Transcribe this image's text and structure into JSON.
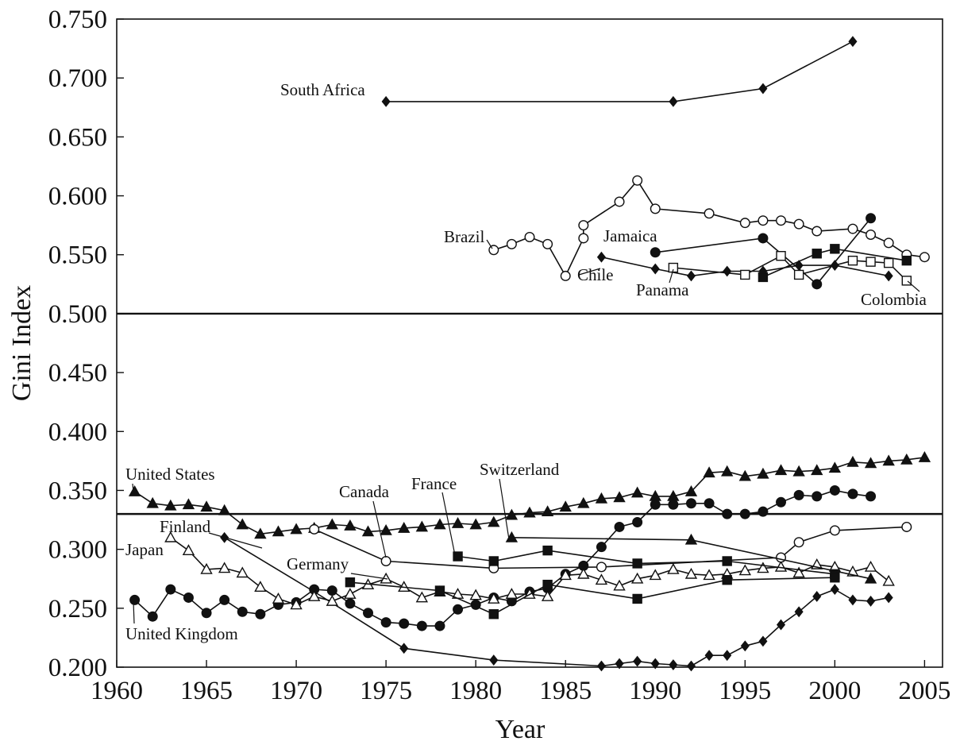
{
  "chart_data": {
    "type": "line",
    "title": "",
    "xlabel": "Year",
    "ylabel": "Gini Index",
    "xlim": [
      1960,
      2006
    ],
    "ylim": [
      0.2,
      0.75
    ],
    "x_ticks": [
      "1960",
      "1965",
      "1970",
      "1975",
      "1980",
      "1985",
      "1990",
      "1995",
      "2000",
      "2005"
    ],
    "y_ticks": [
      "0.200",
      "0.250",
      "0.300",
      "0.350",
      "0.400",
      "0.450",
      "0.500",
      "0.550",
      "0.600",
      "0.650",
      "0.700",
      "0.750"
    ],
    "reference_lines": [
      0.5,
      0.33
    ],
    "grid": false,
    "legend": "none (series labelled directly on the plot)",
    "series": [
      {
        "name": "South Africa",
        "marker": "filled-diamond",
        "points": [
          [
            1975,
            0.68
          ],
          [
            1991,
            0.68
          ],
          [
            1996,
            0.691
          ],
          [
            2001,
            0.731
          ]
        ]
      },
      {
        "name": "Brazil",
        "marker": "open-circle",
        "points": [
          [
            1981,
            0.554
          ],
          [
            1982,
            0.559
          ],
          [
            1983,
            0.565
          ],
          [
            1984,
            0.559
          ],
          [
            1985,
            0.532
          ],
          [
            1986,
            0.564
          ],
          [
            1986,
            0.575
          ],
          [
            1988,
            0.595
          ],
          [
            1989,
            0.613
          ],
          [
            1990,
            0.589
          ],
          [
            1993,
            0.585
          ],
          [
            1995,
            0.577
          ],
          [
            1996,
            0.579
          ],
          [
            1997,
            0.579
          ],
          [
            1998,
            0.576
          ],
          [
            1999,
            0.57
          ],
          [
            2001,
            0.572
          ],
          [
            2002,
            0.567
          ],
          [
            2003,
            0.56
          ],
          [
            2004,
            0.55
          ],
          [
            2005,
            0.548
          ]
        ]
      },
      {
        "name": "Jamaica",
        "marker": "filled-circle",
        "points": [
          [
            1990,
            0.552
          ],
          [
            1996,
            0.564
          ],
          [
            1999,
            0.525
          ],
          [
            2002,
            0.581
          ]
        ]
      },
      {
        "name": "Chile",
        "marker": "filled-diamond",
        "points": [
          [
            1987,
            0.548
          ],
          [
            1990,
            0.538
          ],
          [
            1992,
            0.532
          ],
          [
            1994,
            0.536
          ],
          [
            1996,
            0.536
          ],
          [
            1998,
            0.541
          ],
          [
            2000,
            0.541
          ],
          [
            2003,
            0.532
          ]
        ]
      },
      {
        "name": "Panama",
        "marker": "open-square",
        "points": [
          [
            1991,
            0.539
          ],
          [
            1995,
            0.533
          ],
          [
            1997,
            0.549
          ],
          [
            1998,
            0.533
          ],
          [
            2001,
            0.545
          ],
          [
            2002,
            0.544
          ],
          [
            2003,
            0.543
          ],
          [
            2004,
            0.528
          ]
        ]
      },
      {
        "name": "Colombia",
        "marker": "filled-square",
        "points": [
          [
            1996,
            0.531
          ],
          [
            1999,
            0.551
          ],
          [
            2000,
            0.555
          ],
          [
            2004,
            0.545
          ]
        ]
      },
      {
        "name": "United States",
        "marker": "filled-triangle",
        "points": [
          [
            1961,
            0.349
          ],
          [
            1962,
            0.339
          ],
          [
            1963,
            0.337
          ],
          [
            1964,
            0.338
          ],
          [
            1965,
            0.336
          ],
          [
            1966,
            0.333
          ],
          [
            1967,
            0.321
          ],
          [
            1968,
            0.313
          ],
          [
            1969,
            0.315
          ],
          [
            1970,
            0.317
          ],
          [
            1971,
            0.318
          ],
          [
            1972,
            0.321
          ],
          [
            1973,
            0.32
          ],
          [
            1974,
            0.315
          ],
          [
            1975,
            0.316
          ],
          [
            1976,
            0.318
          ],
          [
            1977,
            0.319
          ],
          [
            1978,
            0.321
          ],
          [
            1979,
            0.322
          ],
          [
            1980,
            0.321
          ],
          [
            1981,
            0.323
          ],
          [
            1982,
            0.329
          ],
          [
            1983,
            0.331
          ],
          [
            1984,
            0.332
          ],
          [
            1985,
            0.336
          ],
          [
            1986,
            0.339
          ],
          [
            1987,
            0.343
          ],
          [
            1988,
            0.344
          ],
          [
            1989,
            0.348
          ],
          [
            1990,
            0.345
          ],
          [
            1991,
            0.345
          ],
          [
            1992,
            0.349
          ],
          [
            1993,
            0.365
          ],
          [
            1994,
            0.366
          ],
          [
            1995,
            0.362
          ],
          [
            1996,
            0.364
          ],
          [
            1997,
            0.367
          ],
          [
            1998,
            0.366
          ],
          [
            1999,
            0.367
          ],
          [
            2000,
            0.369
          ],
          [
            2001,
            0.374
          ],
          [
            2002,
            0.373
          ],
          [
            2003,
            0.375
          ],
          [
            2004,
            0.376
          ],
          [
            2005,
            0.378
          ]
        ]
      },
      {
        "name": "United Kingdom",
        "marker": "filled-circle",
        "points": [
          [
            1961,
            0.257
          ],
          [
            1962,
            0.243
          ],
          [
            1963,
            0.266
          ],
          [
            1964,
            0.259
          ],
          [
            1965,
            0.246
          ],
          [
            1966,
            0.257
          ],
          [
            1967,
            0.247
          ],
          [
            1968,
            0.245
          ],
          [
            1969,
            0.253
          ],
          [
            1970,
            0.255
          ],
          [
            1971,
            0.266
          ],
          [
            1972,
            0.265
          ],
          [
            1973,
            0.254
          ],
          [
            1974,
            0.246
          ],
          [
            1975,
            0.238
          ],
          [
            1976,
            0.237
          ],
          [
            1977,
            0.235
          ],
          [
            1978,
            0.235
          ],
          [
            1979,
            0.249
          ],
          [
            1980,
            0.253
          ],
          [
            1981,
            0.259
          ],
          [
            1982,
            0.256
          ],
          [
            1983,
            0.264
          ],
          [
            1984,
            0.267
          ],
          [
            1985,
            0.279
          ],
          [
            1986,
            0.286
          ],
          [
            1987,
            0.302
          ],
          [
            1988,
            0.319
          ],
          [
            1989,
            0.323
          ],
          [
            1990,
            0.338
          ],
          [
            1991,
            0.338
          ],
          [
            1992,
            0.339
          ],
          [
            1993,
            0.339
          ],
          [
            1994,
            0.33
          ],
          [
            1995,
            0.33
          ],
          [
            1996,
            0.332
          ],
          [
            1997,
            0.34
          ],
          [
            1998,
            0.346
          ],
          [
            1999,
            0.345
          ],
          [
            2000,
            0.35
          ],
          [
            2001,
            0.347
          ],
          [
            2002,
            0.345
          ]
        ]
      },
      {
        "name": "Finland",
        "marker": "filled-diamond",
        "points": [
          [
            1966,
            0.31
          ],
          [
            1971,
            0.264
          ],
          [
            1976,
            0.216
          ],
          [
            1981,
            0.206
          ],
          [
            1987,
            0.201
          ],
          [
            1988,
            0.203
          ],
          [
            1989,
            0.205
          ],
          [
            1990,
            0.203
          ],
          [
            1991,
            0.202
          ],
          [
            1992,
            0.201
          ],
          [
            1993,
            0.21
          ],
          [
            1994,
            0.21
          ],
          [
            1995,
            0.218
          ],
          [
            1996,
            0.222
          ],
          [
            1997,
            0.236
          ],
          [
            1998,
            0.247
          ],
          [
            1999,
            0.26
          ],
          [
            2000,
            0.266
          ],
          [
            2001,
            0.257
          ],
          [
            2002,
            0.256
          ],
          [
            2003,
            0.259
          ]
        ]
      },
      {
        "name": "Japan",
        "marker": "open-triangle",
        "points": [
          [
            1963,
            0.31
          ],
          [
            1964,
            0.299
          ],
          [
            1965,
            0.283
          ],
          [
            1966,
            0.284
          ],
          [
            1967,
            0.28
          ],
          [
            1968,
            0.268
          ],
          [
            1969,
            0.258
          ],
          [
            1970,
            0.253
          ],
          [
            1971,
            0.26
          ],
          [
            1972,
            0.256
          ],
          [
            1973,
            0.262
          ],
          [
            1974,
            0.27
          ],
          [
            1975,
            0.275
          ],
          [
            1976,
            0.268
          ],
          [
            1977,
            0.259
          ],
          [
            1978,
            0.264
          ],
          [
            1979,
            0.262
          ],
          [
            1980,
            0.261
          ],
          [
            1981,
            0.258
          ],
          [
            1982,
            0.262
          ],
          [
            1983,
            0.262
          ],
          [
            1984,
            0.26
          ],
          [
            1985,
            0.278
          ],
          [
            1986,
            0.279
          ],
          [
            1987,
            0.274
          ],
          [
            1988,
            0.269
          ],
          [
            1989,
            0.275
          ],
          [
            1990,
            0.278
          ],
          [
            1991,
            0.283
          ],
          [
            1992,
            0.279
          ],
          [
            1993,
            0.278
          ],
          [
            1994,
            0.279
          ],
          [
            1995,
            0.282
          ],
          [
            1996,
            0.284
          ],
          [
            1997,
            0.285
          ],
          [
            1998,
            0.28
          ],
          [
            1999,
            0.287
          ],
          [
            2000,
            0.285
          ],
          [
            2001,
            0.281
          ],
          [
            2002,
            0.285
          ],
          [
            2003,
            0.273
          ]
        ]
      },
      {
        "name": "Canada",
        "marker": "open-circle",
        "points": [
          [
            1971,
            0.317
          ],
          [
            1975,
            0.29
          ],
          [
            1981,
            0.284
          ],
          [
            1987,
            0.285
          ],
          [
            1997,
            0.293
          ],
          [
            1998,
            0.306
          ],
          [
            2000,
            0.316
          ],
          [
            2004,
            0.319
          ]
        ]
      },
      {
        "name": "France",
        "marker": "filled-square",
        "points": [
          [
            1979,
            0.294
          ],
          [
            1981,
            0.29
          ],
          [
            1984,
            0.299
          ],
          [
            1989,
            0.288
          ],
          [
            1994,
            0.29
          ],
          [
            2000,
            0.279
          ]
        ]
      },
      {
        "name": "Germany",
        "marker": "filled-square",
        "points": [
          [
            1973,
            0.272
          ],
          [
            1978,
            0.265
          ],
          [
            1981,
            0.245
          ],
          [
            1984,
            0.27
          ],
          [
            1989,
            0.258
          ],
          [
            1994,
            0.274
          ],
          [
            2000,
            0.276
          ]
        ]
      },
      {
        "name": "Switzerland",
        "marker": "filled-triangle",
        "points": [
          [
            1982,
            0.31
          ],
          [
            1992,
            0.308
          ],
          [
            2002,
            0.275
          ]
        ]
      }
    ]
  },
  "labels": {
    "south_africa": "South Africa",
    "brazil": "Brazil",
    "jamaica": "Jamaica",
    "chile": "Chile",
    "panama": "Panama",
    "colombia": "Colombia",
    "united_states": "United States",
    "canada": "Canada",
    "france": "France",
    "switzerland": "Switzerland",
    "finland": "Finland",
    "japan": "Japan",
    "germany": "Germany",
    "united_kingdom": "United Kingdom"
  }
}
